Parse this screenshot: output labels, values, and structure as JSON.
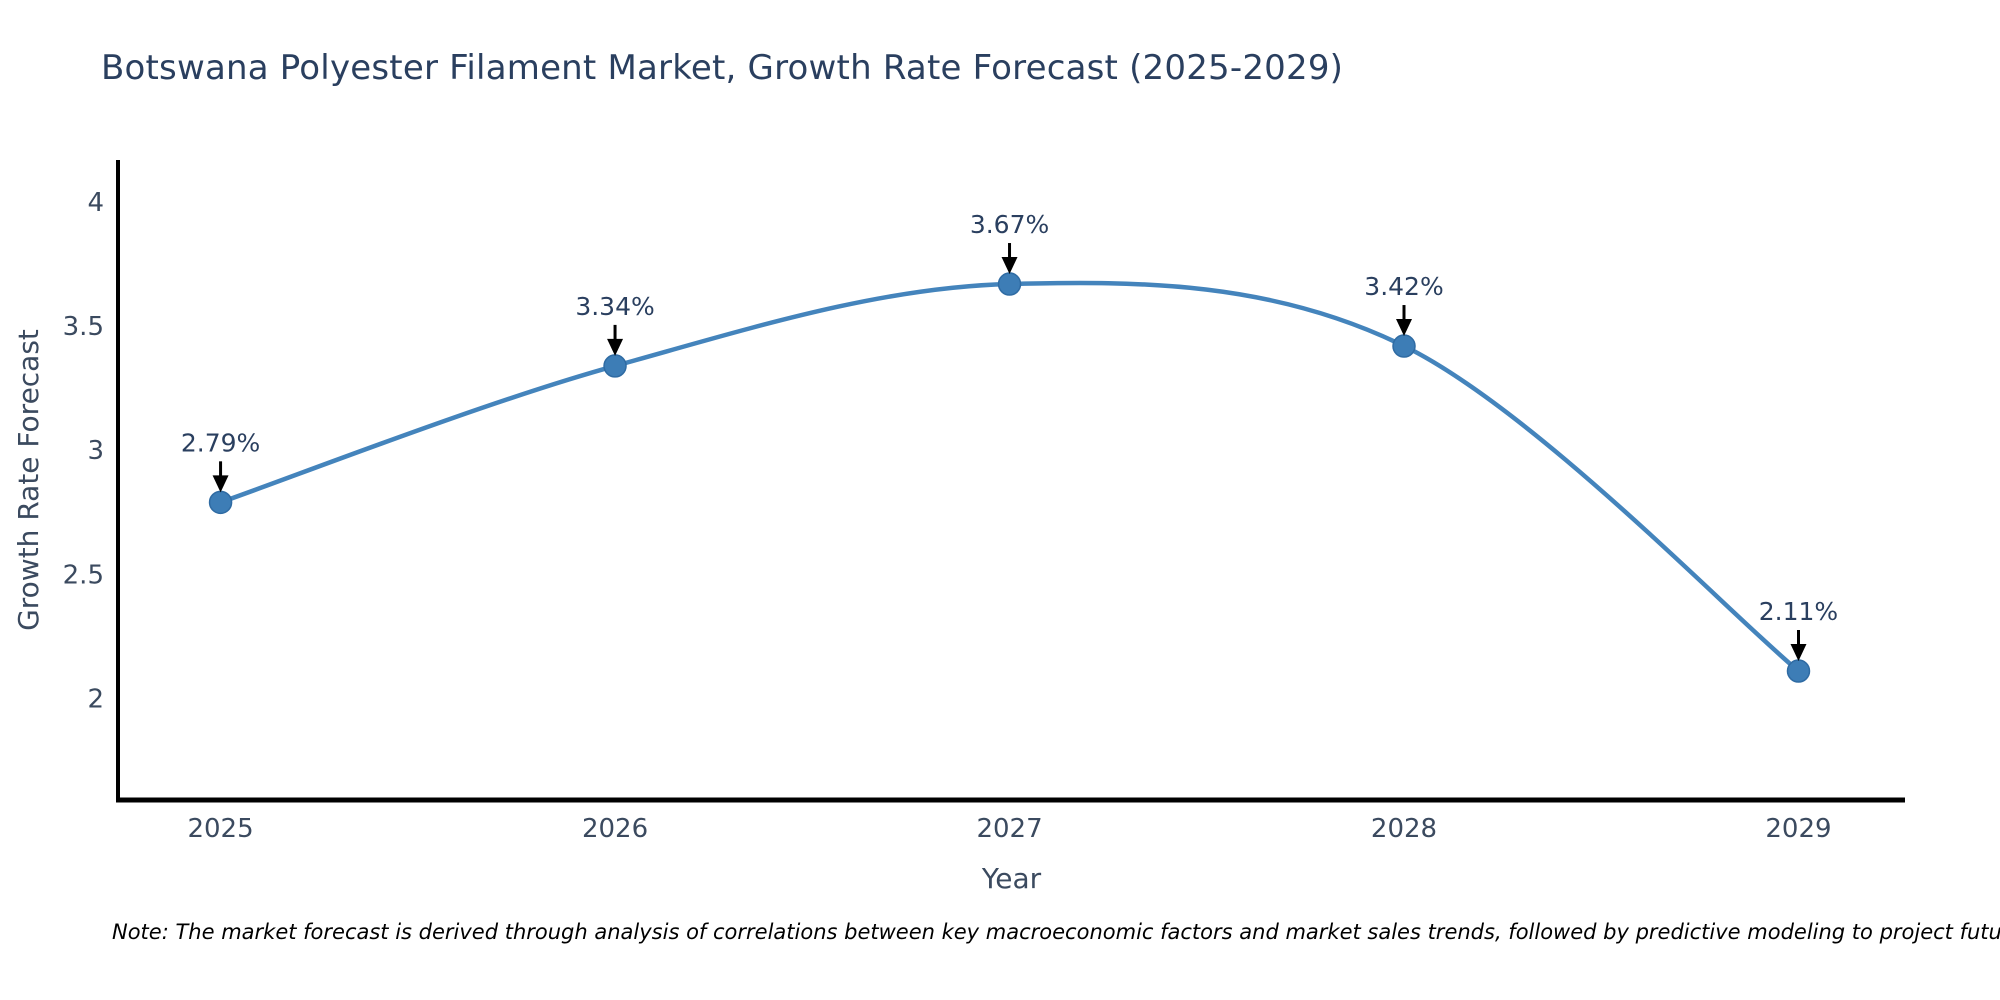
{
  "title": "Botswana Polyester Filament Market, Growth Rate Forecast (2025-2029)",
  "note": "Note: The market forecast is derived through analysis of correlations between key macroeconomic factors and market sales trends, followed by predictive modeling to project future sales",
  "chart_data": {
    "type": "line",
    "title": "Botswana Polyester Filament Market, Growth Rate Forecast (2025-2029)",
    "xlabel": "Year",
    "ylabel": "Growth Rate Forecast",
    "x": [
      2025,
      2026,
      2027,
      2028,
      2029
    ],
    "values": [
      2.79,
      3.34,
      3.67,
      3.42,
      2.11
    ],
    "point_labels": [
      "2.79%",
      "3.34%",
      "3.67%",
      "3.42%",
      "2.11%"
    ],
    "xtick_labels": [
      "2025",
      "2026",
      "2027",
      "2028",
      "2029"
    ],
    "ytick_values": [
      2,
      2.5,
      3,
      3.5,
      4
    ],
    "ytick_labels": [
      "2",
      "2.5",
      "3",
      "3.5",
      "4"
    ],
    "xlim": [
      2024.74,
      2029.27
    ],
    "ylim": [
      1.59,
      4.17
    ],
    "grid": false,
    "legend": null,
    "line_style": "smooth-spline",
    "marker": "circle",
    "annotation_style": "label-with-down-arrow",
    "colors": {
      "line": "#4484bc",
      "marker_fill": "#3d7db6",
      "marker_edge": "#2f6ba3",
      "arrow": "#000000",
      "axis_spine": "#000000",
      "title_text": "#2a3f5f",
      "axis_text": "#3b4a5f",
      "annotation_text": "#2a3f5f",
      "note_text": "#000000",
      "background": "#ffffff"
    }
  }
}
